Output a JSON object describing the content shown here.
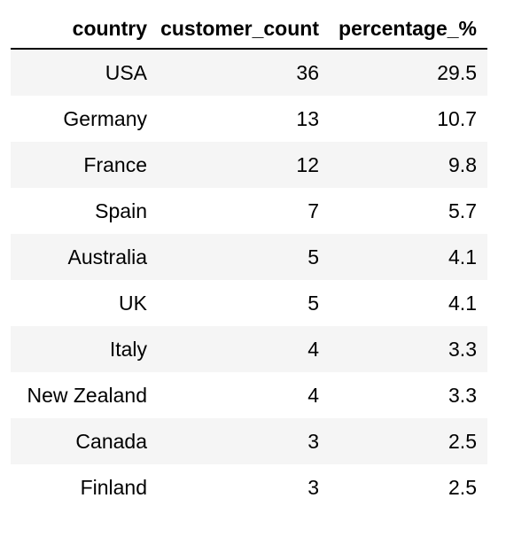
{
  "table": {
    "headers": [
      "country",
      "customer_count",
      "percentage_%"
    ],
    "rows": [
      [
        "USA",
        "36",
        "29.5"
      ],
      [
        "Germany",
        "13",
        "10.7"
      ],
      [
        "France",
        "12",
        "9.8"
      ],
      [
        "Spain",
        "7",
        "5.7"
      ],
      [
        "Australia",
        "5",
        "4.1"
      ],
      [
        "UK",
        "5",
        "4.1"
      ],
      [
        "Italy",
        "4",
        "3.3"
      ],
      [
        "New Zealand",
        "4",
        "3.3"
      ],
      [
        "Canada",
        "3",
        "2.5"
      ],
      [
        "Finland",
        "3",
        "2.5"
      ]
    ],
    "colors": {
      "stripe": "#f5f5f5",
      "background": "#ffffff",
      "header_rule": "#000000"
    }
  }
}
